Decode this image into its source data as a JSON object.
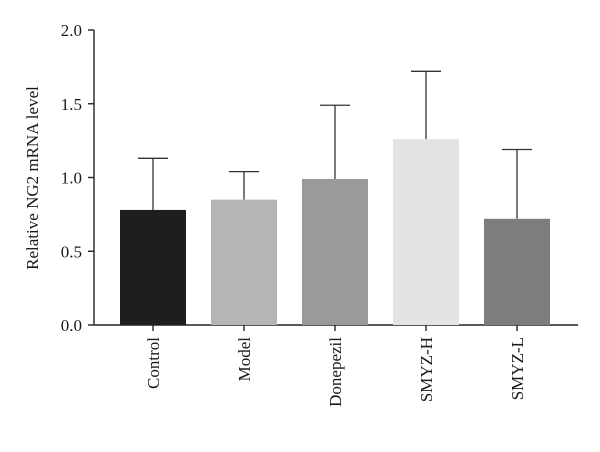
{
  "chart_data": {
    "type": "bar",
    "title": "",
    "xlabel": "",
    "ylabel": "Relative NG2 mRNA level",
    "ylim": [
      0,
      2.0
    ],
    "yticks": [
      "0.0",
      "0.5",
      "1.0",
      "1.5",
      "2.0"
    ],
    "ytick_values": [
      0,
      0.5,
      1.0,
      1.5,
      2.0
    ],
    "categories": [
      "Control",
      "Model",
      "Donepezil",
      "SMYZ-H",
      "SMYZ-L"
    ],
    "values": [
      0.78,
      0.85,
      0.99,
      1.26,
      0.72
    ],
    "error_upper": [
      1.13,
      1.04,
      1.49,
      1.72,
      1.19
    ],
    "colors": [
      "#1e1e1e",
      "#b5b5b5",
      "#9a9a9a",
      "#e3e3e3",
      "#7d7d7d"
    ],
    "grid": false,
    "legend": "none"
  }
}
